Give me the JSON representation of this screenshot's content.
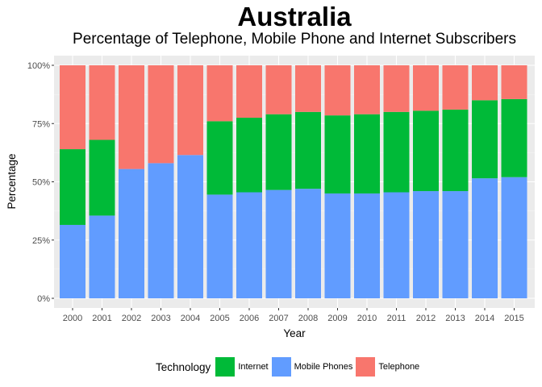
{
  "chart_data": {
    "type": "bar",
    "stacked": "percent",
    "title": "Australia",
    "subtitle": "Percentage of Telephone, Mobile Phone and Internet Subscribers",
    "xlabel": "Year",
    "ylabel": "Percentage",
    "ylim": [
      0,
      100
    ],
    "y_ticks": [
      "0%",
      "25%",
      "50%",
      "75%",
      "100%"
    ],
    "grid": true,
    "legend_position": "bottom",
    "legend_title": "Technology",
    "categories": [
      "2000",
      "2001",
      "2002",
      "2003",
      "2004",
      "2005",
      "2006",
      "2007",
      "2008",
      "2009",
      "2010",
      "2011",
      "2012",
      "2013",
      "2014",
      "2015"
    ],
    "series": [
      {
        "name": "Mobile Phones",
        "color": "#619CFF",
        "values": [
          31.5,
          35.5,
          55.5,
          58,
          61.5,
          44.5,
          45.5,
          46.5,
          47,
          45,
          45,
          45.5,
          46,
          46,
          51.5,
          52
        ]
      },
      {
        "name": "Internet",
        "color": "#00BA38",
        "values": [
          32.5,
          32.5,
          0,
          0,
          0,
          31.5,
          32,
          32.5,
          33,
          33.5,
          34,
          34.5,
          34.5,
          35,
          33.5,
          33.5
        ]
      },
      {
        "name": "Telephone",
        "color": "#F8766D",
        "values": [
          36,
          32,
          44.5,
          42,
          38.5,
          24,
          22.5,
          21,
          20,
          21.5,
          21,
          20,
          19.5,
          19,
          15,
          14.5
        ]
      }
    ]
  }
}
